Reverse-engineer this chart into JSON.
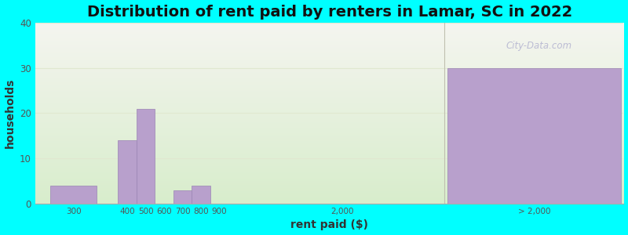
{
  "title": "Distribution of rent paid by renters in Lamar, SC in 2022",
  "xlabel": "rent paid ($)",
  "ylabel": "households",
  "background_color": "#00FFFF",
  "bar_color": "#b8a0cc",
  "bar_edge_color": "#9a84b4",
  "values": {
    "300": 4,
    "400": 14,
    "500": 21,
    "600": 0,
    "700": 3,
    "800": 4,
    "900": 0,
    "> 2,000": 30
  },
  "ylim": [
    0,
    40
  ],
  "yticks": [
    0,
    10,
    20,
    30,
    40
  ],
  "watermark": "City-Data.com",
  "title_fontsize": 14,
  "axis_label_fontsize": 10,
  "grad_top_color": "#f5f5f0",
  "grad_bottom_color": "#d8edcc",
  "grid_color": "#e0e8d0"
}
